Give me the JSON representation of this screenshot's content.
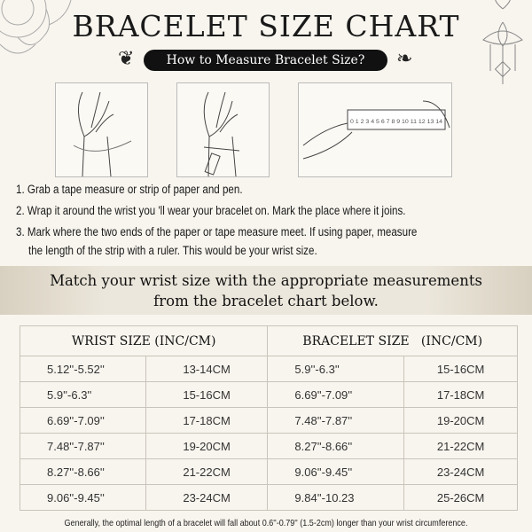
{
  "title": "BRACELET SIZE CHART",
  "subtitle": "How to Measure Bracelet Size?",
  "ruler_numbers": "0 1 2 3 4 5 6 7 8 9 10 11 12 13 14",
  "steps": [
    "1. Grab a tape measure or strip of paper and pen.",
    "2. Wrap it around the wrist you 'll wear your bracelet on. Mark the place where it joins.",
    "3. Mark where the two ends of the paper or tape measure meet. If using paper, measure",
    "the length of the strip with a ruler. This would be your wrist size."
  ],
  "banner": {
    "line1": "Match your wrist size with the appropriate measurements",
    "line2": "from the bracelet chart below."
  },
  "table": {
    "headers": [
      "WRIST SIZE (INC/CM)",
      "BRACELET SIZE   (INC/CM)"
    ],
    "rows": [
      [
        "5.12''-5.52''",
        "13-14CM",
        "5.9''-6.3''",
        "15-16CM"
      ],
      [
        "5.9''-6.3''",
        "15-16CM",
        "6.69''-7.09''",
        "17-18CM"
      ],
      [
        "6.69''-7.09''",
        "17-18CM",
        "7.48''-7.87''",
        "19-20CM"
      ],
      [
        "7.48''-7.87''",
        "19-20CM",
        "8.27''-8.66''",
        "21-22CM"
      ],
      [
        "8.27''-8.66''",
        "21-22CM",
        "9.06''-9.45''",
        "23-24CM"
      ],
      [
        "9.06''-9.45''",
        "23-24CM",
        "9.84''-10.23",
        "25-26CM"
      ]
    ]
  },
  "footnote": "Generally, the optimal length of a bracelet will fall about 0.6''-0.79'' (1.5-2cm) longer than your wrist circumference."
}
